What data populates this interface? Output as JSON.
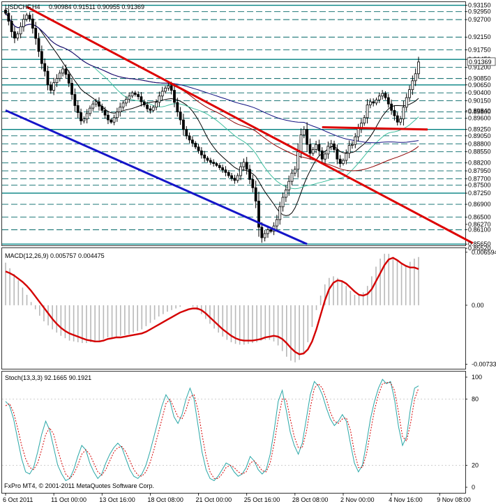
{
  "chart_data": {
    "type": "candlestick",
    "symbol_header": "USDCHF,H4",
    "ohlc_header": "0.90984 0.91511 0.90955 0.91369",
    "copyright": "FxPro MT4, © 2001-2011 MetaQuotes Software Corp.",
    "colors": {
      "candle": "#000000",
      "level_line": "#006666",
      "level_line_bold": "#008080",
      "trend_red": "#dd0000",
      "trend_blue": "#1515c8",
      "ma_black": "#000000",
      "ma_navy": "#101080",
      "ma_teal": "#40c0a0",
      "ma_darkred": "#8b0000",
      "macd_hist": "#b8b8b8",
      "macd_signal": "#d40000",
      "stoch_main": "#2aa7a7",
      "stoch_signal": "#d40000"
    },
    "price_panel": {
      "ylim": [
        0.8561,
        0.9325
      ],
      "price_labels": [
        "0.93150",
        "0.92950",
        "0.92700",
        "0.92150",
        "0.91750",
        "0.91450",
        "0.91200",
        "0.90850",
        "0.90650",
        "0.90400",
        "0.90150",
        "0.89840",
        "0.89800",
        "0.89600",
        "0.89250",
        "0.89050",
        "0.88800",
        "0.88550",
        "0.88200",
        "0.87950",
        "0.87700",
        "0.87500",
        "0.87250",
        "0.86900",
        "0.86500",
        "0.86270",
        "0.86100",
        "0.85650",
        "0.85520"
      ],
      "levels": [
        0.9315,
        0.9295,
        0.927,
        0.9215,
        0.9175,
        0.9145,
        0.912,
        0.9085,
        0.9065,
        0.904,
        0.9015,
        0.898,
        0.896,
        0.8925,
        0.8905,
        0.888,
        0.8855,
        0.882,
        0.8795,
        0.877,
        0.875,
        0.8725,
        0.869,
        0.865,
        0.861,
        0.8565
      ],
      "bold_levels": [
        0.9315,
        0.9145,
        0.9065,
        0.8925,
        0.8725,
        0.8565
      ],
      "current_price": "0.91369",
      "closes": [
        0.929,
        0.9265,
        0.9232,
        0.9212,
        0.9225,
        0.9248,
        0.9271,
        0.9284,
        0.9272,
        0.9243,
        0.9211,
        0.917,
        0.9132,
        0.9108,
        0.9065,
        0.9048,
        0.9072,
        0.9085,
        0.9102,
        0.9115,
        0.9098,
        0.907,
        0.9035,
        0.9,
        0.8978,
        0.8952,
        0.8958,
        0.8975,
        0.8992,
        0.9005,
        0.9012,
        0.8998,
        0.8985,
        0.897,
        0.8955,
        0.8948,
        0.8962,
        0.898,
        0.8995,
        0.9008,
        0.902,
        0.903,
        0.904,
        0.9035,
        0.9028,
        0.9012,
        0.9002,
        0.899,
        0.8985,
        0.8995,
        0.901,
        0.903,
        0.9045,
        0.9055,
        0.9062,
        0.9048,
        0.901,
        0.898,
        0.8955,
        0.8925,
        0.8905,
        0.8892,
        0.8882,
        0.887,
        0.8858,
        0.8845,
        0.8835,
        0.8828,
        0.8822,
        0.8818,
        0.8812,
        0.8805,
        0.8798,
        0.879,
        0.878,
        0.8772,
        0.8765,
        0.878,
        0.8808,
        0.8822,
        0.88,
        0.8768,
        0.8742,
        0.87,
        0.8618,
        0.8585,
        0.8598,
        0.861,
        0.8605,
        0.8622,
        0.8642,
        0.8682,
        0.8712,
        0.8735,
        0.8762,
        0.8788,
        0.88,
        0.8855,
        0.8908,
        0.8925,
        0.8878,
        0.885,
        0.8862,
        0.8878,
        0.8858,
        0.8832,
        0.8848,
        0.8872,
        0.888,
        0.8862,
        0.8832,
        0.8818,
        0.8828,
        0.885,
        0.8875,
        0.8878,
        0.8902,
        0.8928,
        0.8945,
        0.8962,
        0.9002,
        0.9012,
        0.9008,
        0.9018,
        0.903,
        0.9038,
        0.9025,
        0.9005,
        0.8985,
        0.8968,
        0.8948,
        0.8958,
        0.8995,
        0.9025,
        0.905,
        0.9078,
        0.91,
        0.9137
      ],
      "trend_lines": [
        {
          "color": "trend_red",
          "from": {
            "bar": 7,
            "price": 0.931
          },
          "to": {
            "bar": 155,
            "price": 0.8568
          }
        },
        {
          "color": "trend_blue",
          "from": {
            "bar": 0,
            "price": 0.8985
          },
          "to": {
            "bar": 100,
            "price": 0.8565
          }
        },
        {
          "color": "trend_red",
          "from": {
            "bar": 105,
            "price": 0.8932
          },
          "to": {
            "bar": 140,
            "price": 0.8925
          }
        }
      ],
      "moving_averages": [
        {
          "color": "ma_black",
          "period": 12
        },
        {
          "color": "ma_teal",
          "period": 30
        },
        {
          "color": "ma_darkred",
          "period": 55
        },
        {
          "color": "ma_navy",
          "period": 100
        }
      ]
    },
    "macd_panel": {
      "label": "MACD(12,26,9) 0.005757 0.004475",
      "ylim": [
        -0.0079,
        0.0071
      ],
      "tick_labels": [
        "0.006594",
        "0.00",
        "-0.007337"
      ],
      "tick_values": [
        0.006594,
        0.0,
        -0.007337
      ],
      "signal": [
        0.0042,
        0.004,
        0.0037,
        0.0033,
        0.0029,
        0.0024,
        0.0018,
        0.0011,
        0.0004,
        -0.0003,
        -0.001,
        -0.0017,
        -0.0023,
        -0.0028,
        -0.0032,
        -0.0035,
        -0.0037,
        -0.0039,
        -0.0041,
        -0.0043,
        -0.0044,
        -0.0045,
        -0.0045,
        -0.0044,
        -0.0042,
        -0.0041,
        -0.004,
        -0.004,
        -0.0039,
        -0.0038,
        -0.0037,
        -0.0036,
        -0.0035,
        -0.0033,
        -0.003,
        -0.0027,
        -0.0024,
        -0.0021,
        -0.0018,
        -0.0015,
        -0.0012,
        -0.0009,
        -0.0007,
        -0.0005,
        -0.0004,
        -0.0004,
        -0.0006,
        -0.001,
        -0.0015,
        -0.002,
        -0.0025,
        -0.003,
        -0.0034,
        -0.0038,
        -0.0041,
        -0.0043,
        -0.0044,
        -0.0044,
        -0.0044,
        -0.0043,
        -0.0042,
        -0.004,
        -0.0039,
        -0.0038,
        -0.0039,
        -0.0042,
        -0.0047,
        -0.0053,
        -0.0058,
        -0.0061,
        -0.006,
        -0.0055,
        -0.0045,
        -0.003,
        -0.0012,
        0.0006,
        0.002,
        0.0028,
        0.0031,
        0.003,
        0.0027,
        0.0022,
        0.0017,
        0.0013,
        0.0012,
        0.0014,
        0.002,
        0.003,
        0.004,
        0.005,
        0.0057,
        0.0059,
        0.0056,
        0.0052,
        0.0049,
        0.0047,
        0.0047,
        0.0045
      ],
      "histogram": [
        0.0053,
        0.0046,
        0.0039,
        0.0031,
        0.0022,
        0.0013,
        0.0004,
        -0.0005,
        -0.0013,
        -0.002,
        -0.0025,
        -0.003,
        -0.0034,
        -0.0038,
        -0.0041,
        -0.0044,
        -0.0045,
        -0.0046,
        -0.0047,
        -0.0047,
        -0.0046,
        -0.0046,
        -0.0044,
        -0.0042,
        -0.004,
        -0.004,
        -0.0039,
        -0.0038,
        -0.0037,
        -0.0036,
        -0.0034,
        -0.0032,
        -0.003,
        -0.0026,
        -0.0022,
        -0.0018,
        -0.0014,
        -0.0011,
        -0.0008,
        -0.0006,
        -0.0004,
        -0.0002,
        0.0,
        0.0,
        -0.0002,
        -0.0006,
        -0.0011,
        -0.0017,
        -0.0023,
        -0.0029,
        -0.0034,
        -0.0039,
        -0.0043,
        -0.0046,
        -0.0048,
        -0.0049,
        -0.0049,
        -0.0048,
        -0.0047,
        -0.0046,
        -0.0044,
        -0.0043,
        -0.0043,
        -0.0045,
        -0.005,
        -0.0057,
        -0.0064,
        -0.0069,
        -0.0071,
        -0.0068,
        -0.006,
        -0.0046,
        -0.0027,
        -0.0006,
        0.0012,
        0.0026,
        0.0034,
        0.0036,
        0.0034,
        0.003,
        0.0024,
        0.0018,
        0.0013,
        0.0012,
        0.0016,
        0.0024,
        0.0036,
        0.0048,
        0.0058,
        0.0064,
        0.0064,
        0.006,
        0.0055,
        0.0052,
        0.005,
        0.0054,
        0.0058,
        0.006
      ]
    },
    "stoch_panel": {
      "label": "Stoch(13,3,3) 92.1665 90.1921",
      "ylim": [
        0,
        100
      ],
      "tick_labels": [
        "100",
        "80",
        "20",
        "0"
      ],
      "tick_values": [
        100,
        80,
        20,
        0
      ],
      "main": [
        78,
        74,
        62,
        44,
        26,
        14,
        12,
        18,
        32,
        48,
        60,
        52,
        36,
        20,
        12,
        6,
        8,
        16,
        28,
        38,
        34,
        22,
        14,
        8,
        12,
        22,
        30,
        36,
        40,
        36,
        26,
        16,
        10,
        8,
        12,
        20,
        32,
        46,
        60,
        74,
        84,
        78,
        64,
        58,
        66,
        80,
        90,
        80,
        56,
        32,
        16,
        8,
        6,
        10,
        16,
        22,
        20,
        14,
        10,
        12,
        18,
        28,
        24,
        16,
        12,
        16,
        30,
        52,
        78,
        88,
        70,
        50,
        38,
        30,
        40,
        62,
        84,
        96,
        92,
        84,
        72,
        62,
        56,
        60,
        66,
        60,
        40,
        22,
        14,
        20,
        40,
        62,
        78,
        90,
        98,
        94,
        96,
        80,
        55,
        38,
        46,
        72,
        90,
        92
      ],
      "signal": [
        74,
        76,
        68,
        54,
        38,
        26,
        18,
        16,
        22,
        34,
        48,
        54,
        48,
        34,
        22,
        12,
        8,
        12,
        20,
        30,
        34,
        30,
        22,
        14,
        11,
        16,
        24,
        32,
        36,
        37,
        32,
        24,
        16,
        11,
        10,
        14,
        22,
        34,
        48,
        62,
        76,
        80,
        72,
        64,
        62,
        70,
        82,
        84,
        70,
        48,
        28,
        14,
        8,
        8,
        12,
        18,
        20,
        18,
        14,
        12,
        14,
        22,
        24,
        20,
        15,
        14,
        22,
        40,
        62,
        80,
        80,
        62,
        46,
        36,
        36,
        50,
        72,
        90,
        94,
        90,
        80,
        68,
        60,
        58,
        62,
        63,
        52,
        32,
        18,
        18,
        30,
        50,
        70,
        84,
        94,
        95,
        95,
        88,
        68,
        46,
        42,
        58,
        80,
        90
      ]
    },
    "x_labels": [
      "6 Oct 2011",
      "11 Oct 00:00",
      "13 Oct 16:00",
      "18 Oct 08:00",
      "21 Oct 00:00",
      "25 Oct 16:00",
      "28 Oct 08:00",
      "2 Nov 00:00",
      "4 Nov 16:00",
      "9 Nov 08:00"
    ],
    "x_label_bars": [
      0,
      16,
      32,
      48,
      64,
      80,
      96,
      112,
      128,
      144
    ]
  }
}
